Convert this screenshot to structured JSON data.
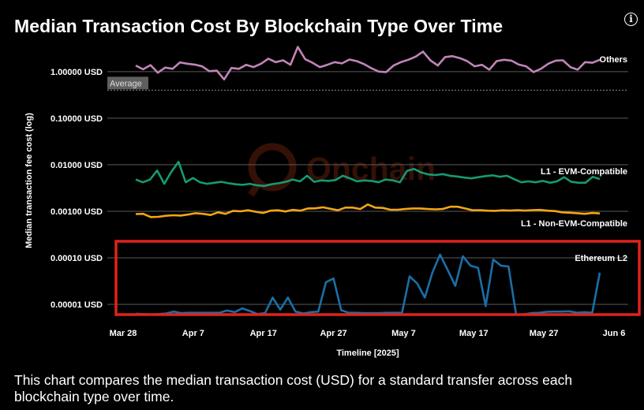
{
  "header": {
    "title": "Median Transaction Cost By Blockchain Type Over Time",
    "info_icon": "info-icon"
  },
  "footer": {
    "description": "This chart compares the median transaction cost (USD) for a standard transfer across each blockchain type over time."
  },
  "watermark": {
    "text": "Onchain"
  },
  "chart_data": {
    "type": "line",
    "ylabel": "Median transaction fee cost (log)",
    "xlabel": "Timeline [2025]",
    "yscale": "log",
    "ylim": [
      5.8e-06,
      3.6
    ],
    "y_ticks": [
      {
        "value": 1,
        "label": "1.00000 USD"
      },
      {
        "value": 0.1,
        "label": "0.10000 USD"
      },
      {
        "value": 0.01,
        "label": "0.01000 USD"
      },
      {
        "value": 0.001,
        "label": "0.00100 USD"
      },
      {
        "value": 0.0001,
        "label": "0.00010 USD"
      },
      {
        "value": 1e-05,
        "label": "0.00001 USD"
      }
    ],
    "x_start": "2025-03-29",
    "x_ticks": [
      "Mar 28",
      "Apr 7",
      "Apr 17",
      "Apr 27",
      "May 7",
      "May 17",
      "May 27",
      "Jun 6"
    ],
    "average": {
      "label": "Average",
      "value": 0.4
    },
    "highlight": {
      "series": "Ethereum L2",
      "color": "#e0221c"
    },
    "series": [
      {
        "name": "Others",
        "color": "#c184b8",
        "values": [
          1.35,
          1.12,
          1.38,
          0.95,
          1.22,
          1.15,
          1.58,
          1.48,
          1.42,
          1.3,
          1.02,
          1.05,
          0.68,
          1.2,
          1.15,
          1.4,
          1.25,
          1.48,
          1.9,
          1.6,
          1.75,
          1.4,
          3.4,
          1.85,
          1.55,
          1.25,
          1.4,
          1.6,
          1.5,
          1.82,
          1.68,
          1.45,
          1.18,
          1.0,
          0.98,
          1.35,
          1.6,
          1.8,
          2.1,
          2.7,
          1.75,
          1.35,
          2.05,
          2.15,
          1.95,
          1.68,
          1.3,
          1.4,
          1.1,
          1.68,
          1.8,
          1.72,
          1.42,
          1.3,
          0.98,
          1.15,
          1.48,
          1.72,
          1.75,
          1.25,
          1.1,
          1.6,
          1.55,
          1.8
        ]
      },
      {
        "name": "L1 - EVM-Compatible",
        "color": "#169a73",
        "values": [
          0.0048,
          0.0042,
          0.0048,
          0.0075,
          0.0039,
          0.0071,
          0.0115,
          0.0042,
          0.0052,
          0.0042,
          0.0039,
          0.0041,
          0.0043,
          0.004,
          0.0038,
          0.0037,
          0.0039,
          0.0036,
          0.0035,
          0.0038,
          0.004,
          0.0043,
          0.0048,
          0.0044,
          0.0058,
          0.0043,
          0.0046,
          0.0045,
          0.0047,
          0.0058,
          0.0051,
          0.0044,
          0.0046,
          0.0045,
          0.0042,
          0.0048,
          0.0046,
          0.0042,
          0.0074,
          0.0081,
          0.0068,
          0.0062,
          0.006,
          0.0063,
          0.0058,
          0.0056,
          0.0053,
          0.0051,
          0.0054,
          0.0057,
          0.0059,
          0.0055,
          0.0058,
          0.0049,
          0.0042,
          0.0044,
          0.0042,
          0.0045,
          0.0041,
          0.0044,
          0.0054,
          0.0043,
          0.0041,
          0.0041,
          0.0055,
          0.0049
        ]
      },
      {
        "name": "L1 - Non-EVM-Compatible",
        "color": "#f2a615",
        "values": [
          0.00087,
          0.00088,
          0.00075,
          0.00076,
          0.0008,
          0.00082,
          0.00081,
          0.00085,
          0.00091,
          0.00088,
          0.00083,
          0.00095,
          0.00088,
          0.00102,
          0.001,
          0.00105,
          0.00098,
          0.00092,
          0.00103,
          0.00105,
          0.00099,
          0.00107,
          0.00103,
          0.00115,
          0.00116,
          0.00122,
          0.00113,
          0.00105,
          0.0012,
          0.0012,
          0.00112,
          0.0014,
          0.0012,
          0.00118,
          0.00108,
          0.00108,
          0.00112,
          0.00115,
          0.00115,
          0.00112,
          0.0011,
          0.00112,
          0.00125,
          0.00125,
          0.00115,
          0.00105,
          0.00106,
          0.00103,
          0.00102,
          0.00105,
          0.00104,
          0.00106,
          0.00104,
          0.00106,
          0.00107,
          0.00103,
          0.00101,
          0.00095,
          0.00093,
          0.00091,
          0.00088,
          0.00092,
          0.0009
        ]
      },
      {
        "name": "Ethereum L2",
        "color": "#1a6fa6",
        "values": [
          6.3e-06,
          6.2e-06,
          6.1e-06,
          6.2e-06,
          6.4e-06,
          7e-06,
          6.5e-06,
          6.6e-06,
          6.6e-06,
          6.6e-06,
          6.6e-06,
          6.6e-06,
          7.4e-06,
          6.8e-06,
          8.2e-06,
          7.2e-06,
          6.2e-06,
          6.5e-06,
          1.4e-05,
          7.7e-06,
          1.4e-05,
          7e-06,
          6.4e-06,
          6.8e-06,
          7e-06,
          3e-05,
          3.6e-05,
          7.5e-06,
          6.6e-06,
          6.6e-06,
          6.5e-06,
          6.5e-06,
          6.5e-06,
          6.6e-06,
          6.6e-06,
          6.6e-06,
          4e-05,
          2.8e-05,
          1.4e-05,
          4.8e-05,
          0.000118,
          5.5e-05,
          2.5e-05,
          0.000108,
          6.8e-05,
          6.1e-05,
          9.2e-06,
          9.2e-05,
          6.8e-05,
          6.5e-05,
          6e-06,
          6.1e-06,
          6.5e-06,
          6.6e-06,
          6.9e-06,
          7e-06,
          7e-06,
          7.1e-06,
          6.6e-06,
          6.8e-06,
          6.6e-06,
          4.8e-05
        ]
      }
    ]
  }
}
